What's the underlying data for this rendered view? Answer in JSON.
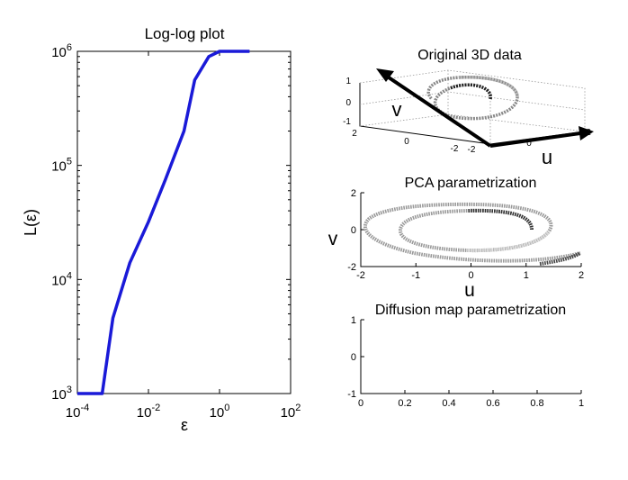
{
  "chart_data": [
    {
      "type": "line",
      "title": "Log-log plot",
      "xlabel": "ε",
      "ylabel": "L(ε)",
      "xscale": "log",
      "yscale": "log",
      "xlim": [
        0.0001,
        100
      ],
      "ylim": [
        1000,
        1000000
      ],
      "xticks": [
        "10-4",
        "10-2",
        "100",
        "102"
      ],
      "yticks": [
        "103",
        "104",
        "105",
        "106"
      ],
      "line_color": "#1a1ad8",
      "series": [
        {
          "x": [
            0.0001,
            0.0003,
            0.0005,
            0.001,
            0.003,
            0.01,
            0.03,
            0.1,
            0.2,
            0.5,
            1,
            3,
            7
          ],
          "y": [
            1000,
            1000,
            1000,
            4600,
            14000,
            32000,
            75000,
            200000,
            560000,
            900000,
            1000000,
            1000000,
            1000000
          ]
        }
      ]
    },
    {
      "type": "scatter",
      "title": "Original 3D data",
      "axis_labels": [
        "v",
        "u"
      ],
      "yticks": [
        "1",
        "0",
        "-1"
      ],
      "zticks": [
        "2",
        "0",
        "-2"
      ],
      "xticks": [
        "-2",
        "0",
        "2"
      ]
    },
    {
      "type": "scatter",
      "title": "PCA parametrization",
      "xlabel": "u",
      "ylabel": "v",
      "xlim": [
        -2,
        2
      ],
      "ylim": [
        -2,
        2
      ],
      "xticks": [
        "-2",
        "-1",
        "0",
        "1",
        "2"
      ],
      "yticks": [
        "2",
        "0",
        "-2"
      ]
    },
    {
      "type": "scatter",
      "title": "Diffusion map parametrization",
      "xlim": [
        0,
        1
      ],
      "ylim": [
        -1,
        1
      ],
      "xticks": [
        "0",
        "0.2",
        "0.4",
        "0.6",
        "0.8",
        "1"
      ],
      "yticks": [
        "1",
        "0",
        "-1"
      ],
      "y_value": 0
    }
  ]
}
